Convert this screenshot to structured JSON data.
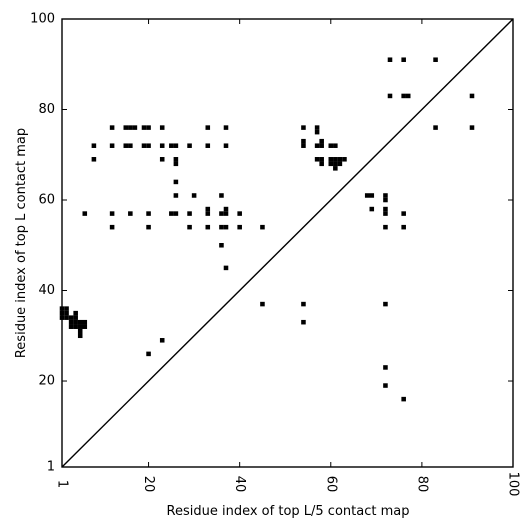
{
  "chart_data": {
    "type": "scatter",
    "title": "",
    "xlabel": "Residue index of top L/5 contact map",
    "ylabel": "Residue index of top L contact map",
    "xlim": [
      1,
      100
    ],
    "ylim": [
      1,
      100
    ],
    "x_ticks": [
      1,
      20,
      40,
      60,
      80,
      100
    ],
    "y_ticks": [
      1,
      20,
      40,
      60,
      80,
      100
    ],
    "x_tick_labels": [
      "1",
      "20",
      "40",
      "60",
      "80",
      "100"
    ],
    "y_tick_labels": [
      "1",
      "20",
      "40",
      "60",
      "80",
      "100"
    ],
    "grid": false,
    "diagonal": {
      "from": [
        1,
        1
      ],
      "to": [
        100,
        100
      ]
    },
    "points": [
      [
        1,
        36
      ],
      [
        2,
        36
      ],
      [
        1,
        35
      ],
      [
        2,
        35
      ],
      [
        1,
        34
      ],
      [
        2,
        34
      ],
      [
        3,
        34
      ],
      [
        4,
        34
      ],
      [
        3,
        33
      ],
      [
        4,
        33
      ],
      [
        5,
        33
      ],
      [
        6,
        33
      ],
      [
        3,
        32
      ],
      [
        4,
        32
      ],
      [
        5,
        32
      ],
      [
        6,
        32
      ],
      [
        5,
        31
      ],
      [
        5,
        30
      ],
      [
        4,
        35
      ],
      [
        6,
        57
      ],
      [
        8,
        72
      ],
      [
        8,
        69
      ],
      [
        12,
        76
      ],
      [
        12,
        72
      ],
      [
        12,
        57
      ],
      [
        12,
        54
      ],
      [
        15,
        76
      ],
      [
        16,
        76
      ],
      [
        17,
        76
      ],
      [
        15,
        72
      ],
      [
        16,
        72
      ],
      [
        16,
        57
      ],
      [
        19,
        76
      ],
      [
        20,
        76
      ],
      [
        19,
        72
      ],
      [
        20,
        72
      ],
      [
        20,
        57
      ],
      [
        20,
        54
      ],
      [
        20,
        26
      ],
      [
        23,
        76
      ],
      [
        23,
        72
      ],
      [
        23,
        69
      ],
      [
        23,
        29
      ],
      [
        25,
        72
      ],
      [
        26,
        72
      ],
      [
        26,
        69
      ],
      [
        26,
        68
      ],
      [
        26,
        64
      ],
      [
        26,
        61
      ],
      [
        25,
        57
      ],
      [
        26,
        57
      ],
      [
        29,
        72
      ],
      [
        29,
        57
      ],
      [
        29,
        54
      ],
      [
        30,
        61
      ],
      [
        33,
        76
      ],
      [
        33,
        72
      ],
      [
        33,
        58
      ],
      [
        33,
        57
      ],
      [
        33,
        54
      ],
      [
        36,
        61
      ],
      [
        36,
        57
      ],
      [
        36,
        54
      ],
      [
        36,
        50
      ],
      [
        37,
        76
      ],
      [
        37,
        72
      ],
      [
        37,
        58
      ],
      [
        37,
        57
      ],
      [
        37,
        54
      ],
      [
        37,
        45
      ],
      [
        40,
        57
      ],
      [
        40,
        54
      ],
      [
        45,
        54
      ],
      [
        45,
        37
      ],
      [
        54,
        76
      ],
      [
        54,
        73
      ],
      [
        54,
        72
      ],
      [
        54,
        37
      ],
      [
        54,
        33
      ],
      [
        57,
        76
      ],
      [
        57,
        75
      ],
      [
        57,
        72
      ],
      [
        58,
        73
      ],
      [
        58,
        72
      ],
      [
        57,
        69
      ],
      [
        58,
        69
      ],
      [
        58,
        68
      ],
      [
        60,
        72
      ],
      [
        61,
        72
      ],
      [
        60,
        69
      ],
      [
        61,
        69
      ],
      [
        62,
        69
      ],
      [
        63,
        69
      ],
      [
        60,
        68
      ],
      [
        61,
        68
      ],
      [
        62,
        68
      ],
      [
        61,
        67
      ],
      [
        68,
        61
      ],
      [
        69,
        61
      ],
      [
        69,
        58
      ],
      [
        72,
        61
      ],
      [
        72,
        60
      ],
      [
        72,
        58
      ],
      [
        72,
        57
      ],
      [
        72,
        54
      ],
      [
        72,
        37
      ],
      [
        72,
        23
      ],
      [
        72,
        19
      ],
      [
        73,
        91
      ],
      [
        73,
        83
      ],
      [
        76,
        91
      ],
      [
        76,
        83
      ],
      [
        77,
        83
      ],
      [
        76,
        57
      ],
      [
        76,
        54
      ],
      [
        76,
        16
      ],
      [
        83,
        91
      ],
      [
        83,
        76
      ],
      [
        91,
        83
      ],
      [
        91,
        76
      ]
    ]
  }
}
